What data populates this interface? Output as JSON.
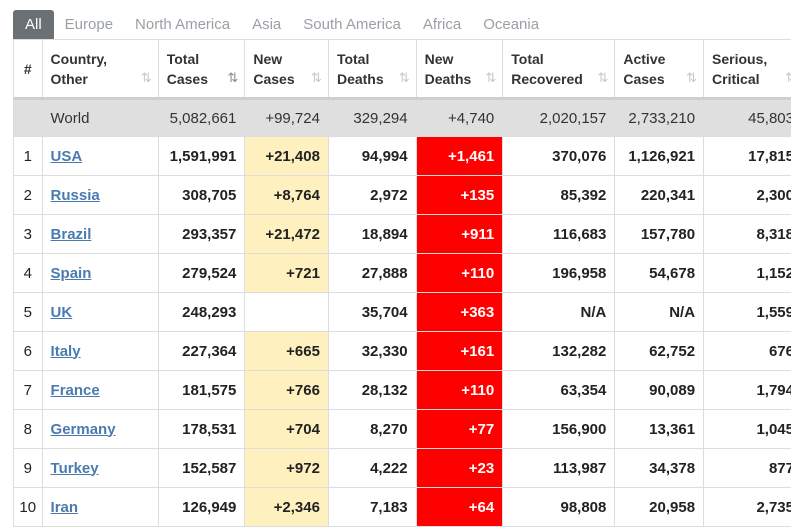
{
  "tabs": [
    "All",
    "Europe",
    "North America",
    "Asia",
    "South America",
    "Africa",
    "Oceania"
  ],
  "active_tab": "All",
  "headers": {
    "idx": "#",
    "country": [
      "Country,",
      "Other"
    ],
    "total_cases": [
      "Total",
      "Cases"
    ],
    "new_cases": [
      "New",
      "Cases"
    ],
    "total_deaths": [
      "Total",
      "Deaths"
    ],
    "new_deaths": [
      "New",
      "Deaths"
    ],
    "total_recovered": [
      "Total",
      "Recovered"
    ],
    "active_cases": [
      "Active",
      "Cases"
    ],
    "serious_critical": [
      "Serious,",
      "Critical"
    ]
  },
  "sort_icon": "⇅",
  "world": {
    "country": "World",
    "total_cases": "5,082,661",
    "new_cases": "+99,724",
    "total_deaths": "329,294",
    "new_deaths": "+4,740",
    "total_recovered": "2,020,157",
    "active_cases": "2,733,210",
    "serious_critical": "45,803"
  },
  "rows": [
    {
      "idx": "1",
      "country": "USA",
      "total_cases": "1,591,991",
      "new_cases": "+21,408",
      "total_deaths": "94,994",
      "new_deaths": "+1,461",
      "total_recovered": "370,076",
      "active_cases": "1,126,921",
      "serious_critical": "17,815"
    },
    {
      "idx": "2",
      "country": "Russia",
      "total_cases": "308,705",
      "new_cases": "+8,764",
      "total_deaths": "2,972",
      "new_deaths": "+135",
      "total_recovered": "85,392",
      "active_cases": "220,341",
      "serious_critical": "2,300"
    },
    {
      "idx": "3",
      "country": "Brazil",
      "total_cases": "293,357",
      "new_cases": "+21,472",
      "total_deaths": "18,894",
      "new_deaths": "+911",
      "total_recovered": "116,683",
      "active_cases": "157,780",
      "serious_critical": "8,318"
    },
    {
      "idx": "4",
      "country": "Spain",
      "total_cases": "279,524",
      "new_cases": "+721",
      "total_deaths": "27,888",
      "new_deaths": "+110",
      "total_recovered": "196,958",
      "active_cases": "54,678",
      "serious_critical": "1,152"
    },
    {
      "idx": "5",
      "country": "UK",
      "total_cases": "248,293",
      "new_cases": "",
      "total_deaths": "35,704",
      "new_deaths": "+363",
      "total_recovered": "N/A",
      "active_cases": "N/A",
      "serious_critical": "1,559"
    },
    {
      "idx": "6",
      "country": "Italy",
      "total_cases": "227,364",
      "new_cases": "+665",
      "total_deaths": "32,330",
      "new_deaths": "+161",
      "total_recovered": "132,282",
      "active_cases": "62,752",
      "serious_critical": "676"
    },
    {
      "idx": "7",
      "country": "France",
      "total_cases": "181,575",
      "new_cases": "+766",
      "total_deaths": "28,132",
      "new_deaths": "+110",
      "total_recovered": "63,354",
      "active_cases": "90,089",
      "serious_critical": "1,794"
    },
    {
      "idx": "8",
      "country": "Germany",
      "total_cases": "178,531",
      "new_cases": "+704",
      "total_deaths": "8,270",
      "new_deaths": "+77",
      "total_recovered": "156,900",
      "active_cases": "13,361",
      "serious_critical": "1,045"
    },
    {
      "idx": "9",
      "country": "Turkey",
      "total_cases": "152,587",
      "new_cases": "+972",
      "total_deaths": "4,222",
      "new_deaths": "+23",
      "total_recovered": "113,987",
      "active_cases": "34,378",
      "serious_critical": "877"
    },
    {
      "idx": "10",
      "country": "Iran",
      "total_cases": "126,949",
      "new_cases": "+2,346",
      "total_deaths": "7,183",
      "new_deaths": "+64",
      "total_recovered": "98,808",
      "active_cases": "20,958",
      "serious_critical": "2,735"
    }
  ],
  "colors": {
    "active_tab_bg": "#6b7075",
    "new_cases_bg": "#fff1bf",
    "new_deaths_bg": "#ff0000",
    "world_row_bg": "#dfdfdf",
    "country_link": "#4a7bb0"
  }
}
